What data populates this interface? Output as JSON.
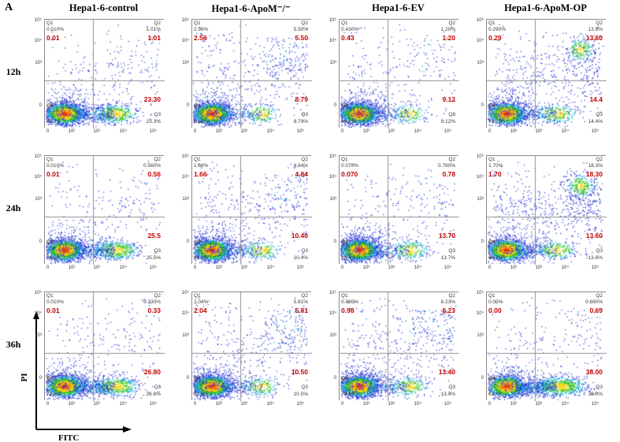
{
  "figure": {
    "panel_label": "A",
    "column_headers": [
      "Hepa1-6-control",
      "Hepa1-6-ApoM⁻/⁻",
      "Hepa1-6-EV",
      "Hepa1-6-ApoM-OP"
    ],
    "row_labels": [
      "12h",
      "24h",
      "36h"
    ],
    "x_axis_label": "FITC",
    "y_axis_label": "PI",
    "x_ticks": [
      "0",
      "10²",
      "10³",
      "10⁴",
      "10⁵"
    ],
    "y_ticks": [
      "10⁵",
      "10⁴",
      "10³",
      "0"
    ]
  },
  "chart_data": [
    {
      "row": "12h",
      "column": "Hepa1-6-control",
      "type": "scatter",
      "q1": {
        "label": "Q1",
        "pct": "0.010%",
        "annot": "0.01"
      },
      "q2": {
        "label": "Q2",
        "pct": "1.01%",
        "annot": "1.01"
      },
      "q3": {
        "label": "Q3",
        "pct": "23.3%",
        "annot": "23.30"
      },
      "q4": {
        "label": "Q4",
        "pct": "75.7%"
      }
    },
    {
      "row": "12h",
      "column": "Hepa1-6-ApoM⁻/⁻",
      "type": "scatter",
      "q1": {
        "label": "Q1",
        "pct": "2.56%",
        "annot": "2.56"
      },
      "q2": {
        "label": "Q2",
        "pct": "5.50%",
        "annot": "5.50"
      },
      "q3": {
        "label": "Q3",
        "pct": "8.79%",
        "annot": "8.79"
      },
      "q4": {
        "label": "Q4",
        "pct": "83.2%"
      }
    },
    {
      "row": "12h",
      "column": "Hepa1-6-EV",
      "type": "scatter",
      "q1": {
        "label": "Q1",
        "pct": "0.430%",
        "annot": "0.43"
      },
      "q2": {
        "label": "Q2",
        "pct": "1.20%",
        "annot": "1.20"
      },
      "q3": {
        "label": "Q3",
        "pct": "9.12%",
        "annot": "9.12"
      },
      "q4": {
        "label": "Q4",
        "pct": "89.2%"
      }
    },
    {
      "row": "12h",
      "column": "Hepa1-6-ApoM-OP",
      "type": "scatter",
      "q1": {
        "label": "Q1",
        "pct": "0.290%",
        "annot": "0.29"
      },
      "q2": {
        "label": "Q2",
        "pct": "13.6%",
        "annot": "13.60"
      },
      "q3": {
        "label": "Q3",
        "pct": "14.4%",
        "annot": "14.4"
      },
      "q4": {
        "label": "Q4",
        "pct": "71.7%"
      }
    },
    {
      "row": "24h",
      "column": "Hepa1-6-control",
      "type": "scatter",
      "q1": {
        "label": "Q1",
        "pct": "0.010%",
        "annot": "0.01"
      },
      "q2": {
        "label": "Q2",
        "pct": "0.560%",
        "annot": "0.56"
      },
      "q3": {
        "label": "Q3",
        "pct": "25.5%",
        "annot": "25.5"
      },
      "q4": {
        "label": "Q4",
        "pct": "73.9%"
      }
    },
    {
      "row": "24h",
      "column": "Hepa1-6-ApoM⁻/⁻",
      "type": "scatter",
      "q1": {
        "label": "Q1",
        "pct": "1.66%",
        "annot": "1.66"
      },
      "q2": {
        "label": "Q2",
        "pct": "4.84%",
        "annot": "4.84"
      },
      "q3": {
        "label": "Q3",
        "pct": "10.4%",
        "annot": "10.40"
      },
      "q4": {
        "label": "Q4",
        "pct": "83.1%"
      }
    },
    {
      "row": "24h",
      "column": "Hepa1-6-EV",
      "type": "scatter",
      "q1": {
        "label": "Q1",
        "pct": "0.070%",
        "annot": "0.070"
      },
      "q2": {
        "label": "Q2",
        "pct": "0.780%",
        "annot": "0.78"
      },
      "q3": {
        "label": "Q3",
        "pct": "13.7%",
        "annot": "13.70"
      },
      "q4": {
        "label": "Q4",
        "pct": "85.4%"
      }
    },
    {
      "row": "24h",
      "column": "Hepa1-6-ApoM-OP",
      "type": "scatter",
      "q1": {
        "label": "Q1",
        "pct": "1.70%",
        "annot": "1.70"
      },
      "q2": {
        "label": "Q2",
        "pct": "18.3%",
        "annot": "18.30"
      },
      "q3": {
        "label": "Q3",
        "pct": "13.6%",
        "annot": "13.60"
      },
      "q4": {
        "label": "Q4",
        "pct": "66.4%"
      }
    },
    {
      "row": "36h",
      "column": "Hepa1-6-control",
      "type": "scatter",
      "q1": {
        "label": "Q1",
        "pct": "0.010%",
        "annot": "0.01"
      },
      "q2": {
        "label": "Q2",
        "pct": "0.330%",
        "annot": "0.33"
      },
      "q3": {
        "label": "Q3",
        "pct": "26.8%",
        "annot": "26.80"
      },
      "q4": {
        "label": "Q4",
        "pct": "72.9%"
      }
    },
    {
      "row": "36h",
      "column": "Hepa1-6-ApoM⁻/⁻",
      "type": "scatter",
      "q1": {
        "label": "Q1",
        "pct": "2.04%",
        "annot": "2.04"
      },
      "q2": {
        "label": "Q2",
        "pct": "5.81%",
        "annot": "5.81"
      },
      "q3": {
        "label": "Q3",
        "pct": "10.5%",
        "annot": "10.50"
      },
      "q4": {
        "label": "Q4",
        "pct": "81.6%"
      }
    },
    {
      "row": "36h",
      "column": "Hepa1-6-EV",
      "type": "scatter",
      "q1": {
        "label": "Q1",
        "pct": "0.980%",
        "annot": "0.98"
      },
      "q2": {
        "label": "Q2",
        "pct": "6.23%",
        "annot": "6.23"
      },
      "q3": {
        "label": "Q3",
        "pct": "13.4%",
        "annot": "13.40"
      },
      "q4": {
        "label": "Q4",
        "pct": "79.4%"
      }
    },
    {
      "row": "36h",
      "column": "Hepa1-6-ApoM-OP",
      "type": "scatter",
      "q1": {
        "label": "Q1",
        "pct": "0.00%",
        "annot": "0.00"
      },
      "q2": {
        "label": "Q2",
        "pct": "0.690%",
        "annot": "0.69"
      },
      "q3": {
        "label": "Q3",
        "pct": "38.0%",
        "annot": "38.00"
      },
      "q4": {
        "label": "Q4",
        "pct": "61.4%"
      }
    }
  ]
}
